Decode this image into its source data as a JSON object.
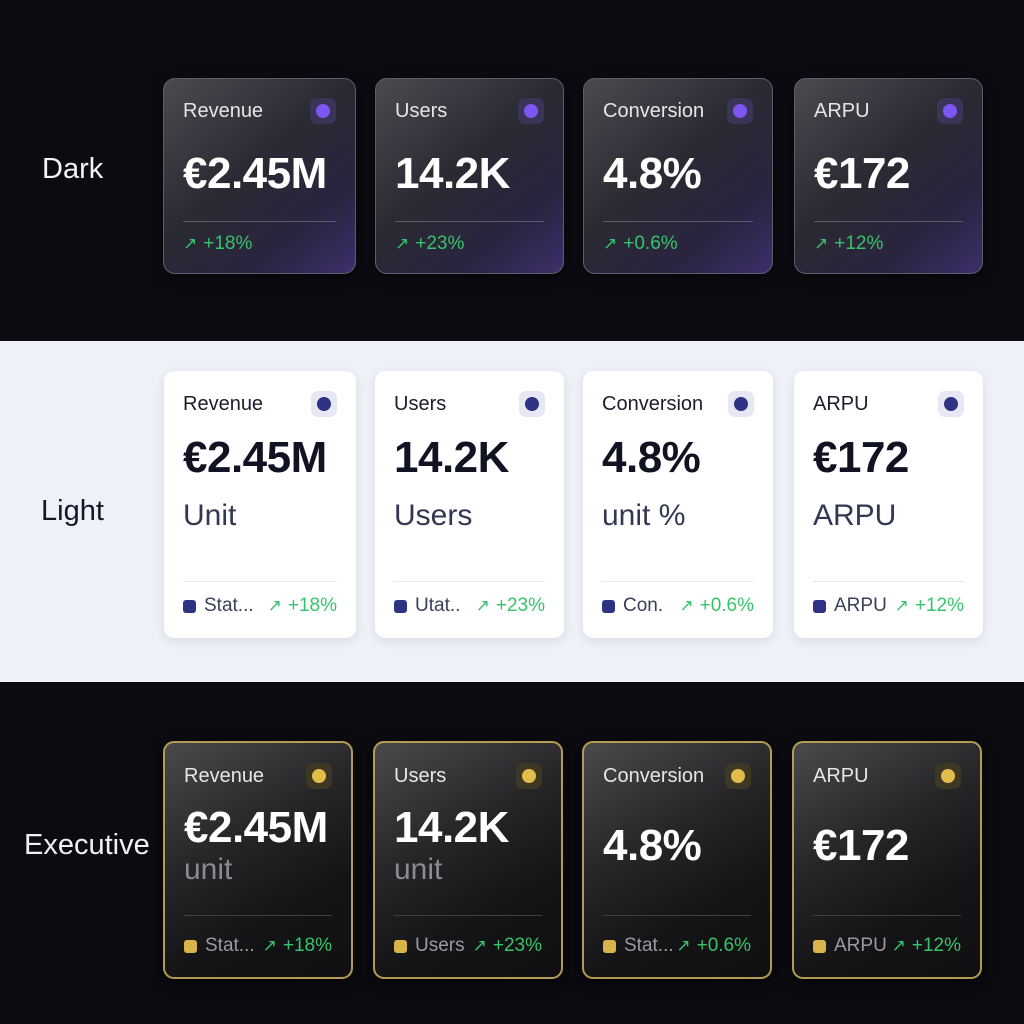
{
  "themes": {
    "dark": {
      "label": "Dark",
      "cards": [
        {
          "title": "Revenue",
          "value": "€2.45M",
          "change": "+18%"
        },
        {
          "title": "Users",
          "value": "14.2K",
          "change": "+23%"
        },
        {
          "title": "Conversion",
          "value": "4.8%",
          "change": "+0.6%"
        },
        {
          "title": "ARPU",
          "value": "€172",
          "change": "+12%"
        }
      ]
    },
    "light": {
      "label": "Light",
      "cards": [
        {
          "title": "Revenue",
          "value": "€2.45M",
          "unit": "Unit",
          "status": "Stat...",
          "change": "+18%"
        },
        {
          "title": "Users",
          "value": "14.2K",
          "unit": "Users",
          "status": "Utat..",
          "change": "+23%"
        },
        {
          "title": "Conversion",
          "value": "4.8%",
          "unit": "unit %",
          "status": "Con.",
          "change": "+0.6%"
        },
        {
          "title": "ARPU",
          "value": "€172",
          "unit": "ARPU",
          "status": "ARPU",
          "change": "+12%"
        }
      ]
    },
    "executive": {
      "label": "Executive",
      "cards": [
        {
          "title": "Revenue",
          "value": "€2.45M",
          "unit": "unit",
          "status": "Stat...",
          "change": "+18%"
        },
        {
          "title": "Users",
          "value": "14.2K",
          "unit": "unit",
          "status": "Users",
          "change": "+23%"
        },
        {
          "title": "Conversion",
          "value": "4.8%",
          "status": "Stat...",
          "change": "+0.6%"
        },
        {
          "title": "ARPU",
          "value": "€172",
          "status": "ARPU",
          "change": "+12%"
        }
      ]
    }
  },
  "icons": {
    "trend": "arrow-up-right-icon",
    "indicator": "status-dot-icon"
  },
  "colors": {
    "positive": "#36c46a",
    "dark_accent": "#7d55f0",
    "light_accent": "#2e3384",
    "executive_accent": "#d8b44a"
  }
}
